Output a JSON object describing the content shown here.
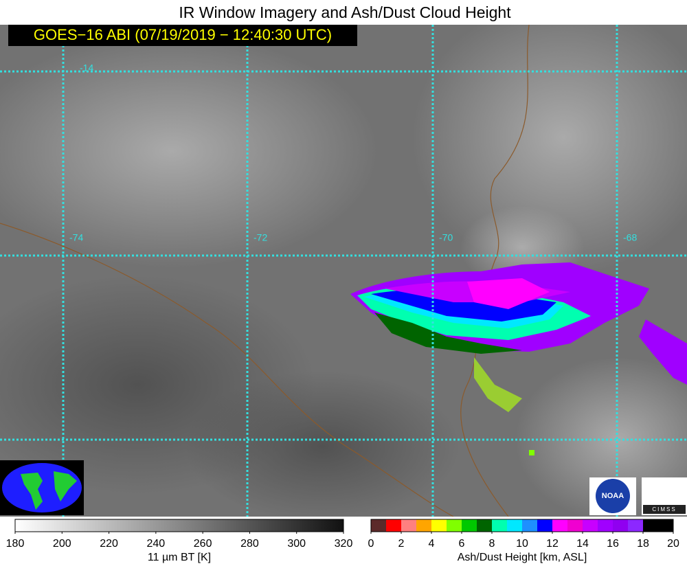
{
  "title": "IR Window Imagery and Ash/Dust Cloud Height",
  "banner": "GOES−16 ABI (07/19/2019 − 12:40:30 UTC)",
  "map": {
    "latitude_labels": [
      "-14"
    ],
    "longitude_labels": [
      "-74",
      "-72",
      "-70",
      "-68"
    ]
  },
  "colorbars": [
    {
      "label": "11 µm BT [K]",
      "xlim": [
        180,
        320
      ],
      "xticks": [
        180,
        200,
        220,
        240,
        260,
        280,
        300,
        320
      ]
    },
    {
      "label": "Ash/Dust Height [km, ASL]",
      "xlim": [
        0,
        20
      ],
      "xticks": [
        0,
        2,
        4,
        6,
        8,
        10,
        12,
        14,
        16,
        18,
        20
      ],
      "colors": [
        "#5c2a2a",
        "#ff0000",
        "#ff8080",
        "#ffa500",
        "#ffff00",
        "#80ff00",
        "#00c800",
        "#006400",
        "#00ffb0",
        "#00e8ff",
        "#1e90ff",
        "#0000ff",
        "#ff00ff",
        "#f000d0",
        "#c800ff",
        "#a000ff",
        "#9000f0",
        "#8c28ff",
        "#000000",
        "#000000"
      ]
    }
  ],
  "logos": [
    "NOAA",
    "CIMSS"
  ]
}
